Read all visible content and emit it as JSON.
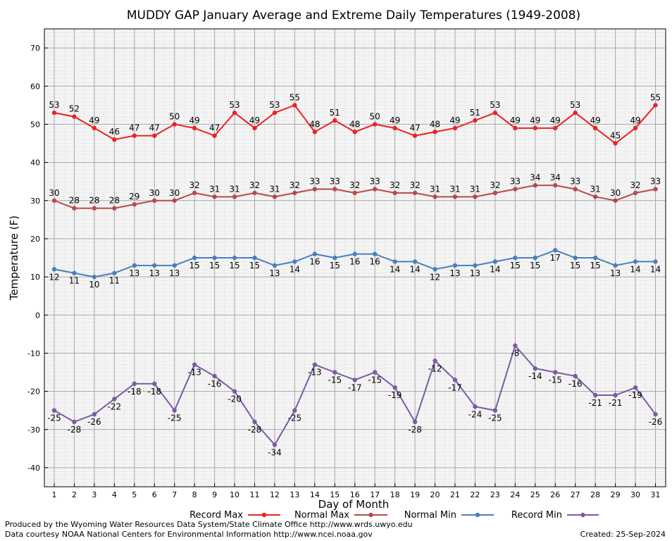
{
  "chart_data": {
    "type": "line",
    "title": "MUDDY GAP January Average and Extreme Daily Temperatures (1949-2008)",
    "xlabel": "Day of Month",
    "ylabel": "Temperature (F)",
    "ylim": [
      -45,
      75
    ],
    "yticks": [
      -40,
      -30,
      -20,
      -10,
      0,
      10,
      20,
      30,
      40,
      50,
      60,
      70
    ],
    "x": [
      1,
      2,
      3,
      4,
      5,
      6,
      7,
      8,
      9,
      10,
      11,
      12,
      13,
      14,
      15,
      16,
      17,
      18,
      19,
      20,
      21,
      22,
      23,
      24,
      25,
      26,
      27,
      28,
      29,
      30,
      31
    ],
    "grid": true,
    "legend_position": "bottom",
    "series": [
      {
        "name": "Record Max",
        "color": "#ee2222",
        "values": [
          53,
          52,
          49,
          46,
          47,
          47,
          50,
          49,
          47,
          53,
          49,
          53,
          55,
          48,
          51,
          48,
          50,
          49,
          47,
          48,
          49,
          51,
          53,
          49,
          49,
          49,
          53,
          49,
          45,
          49,
          55
        ]
      },
      {
        "name": "Normal Max",
        "color": "#b84a4a",
        "values": [
          30,
          28,
          28,
          28,
          29,
          30,
          30,
          32,
          31,
          31,
          32,
          31,
          32,
          33,
          33,
          32,
          33,
          32,
          32,
          31,
          31,
          31,
          32,
          33,
          34,
          34,
          33,
          31,
          30,
          32,
          33
        ]
      },
      {
        "name": "Normal Min",
        "color": "#4a7fbf",
        "values": [
          12,
          11,
          10,
          11,
          13,
          13,
          13,
          15,
          15,
          15,
          15,
          13,
          14,
          16,
          15,
          16,
          16,
          14,
          14,
          12,
          13,
          13,
          14,
          15,
          15,
          17,
          15,
          15,
          13,
          14,
          14
        ]
      },
      {
        "name": "Record Min",
        "color": "#7b5aa6",
        "values": [
          -25,
          -28,
          -26,
          -22,
          -18,
          -18,
          -25,
          -13,
          -16,
          -20,
          -28,
          -34,
          -25,
          -13,
          -15,
          -17,
          -15,
          -19,
          -28,
          -12,
          -17,
          -24,
          -25,
          -8,
          -14,
          -15,
          -16,
          -21,
          -21,
          -19,
          -26
        ]
      }
    ]
  },
  "footer": {
    "produced_by": "Produced by the Wyoming Water Resources Data System/State Climate Office http://www.wrds.uwyo.edu",
    "courtesy": "Data courtesy NOAA National Centers for Environmental Information http://www.ncei.noaa.gov",
    "created": "Created:  25-Sep-2024"
  }
}
